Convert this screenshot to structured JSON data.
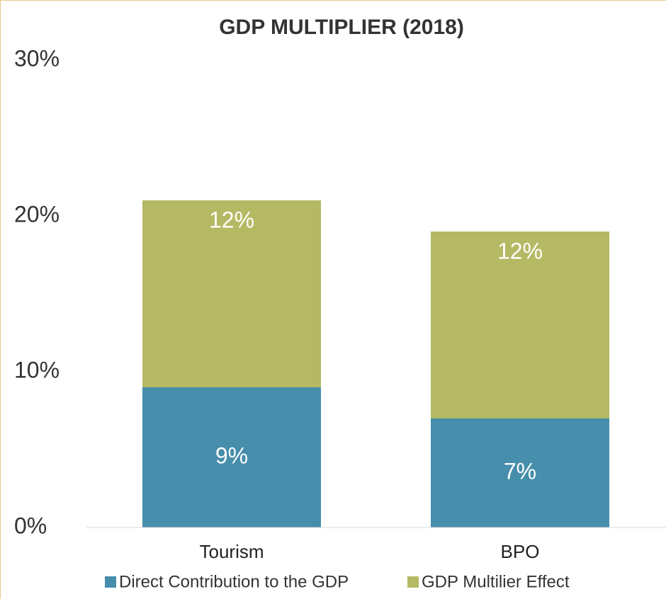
{
  "chart_data": {
    "type": "stacked_bar",
    "title": "GDP MULTIPLIER (2018)",
    "categories": [
      "Tourism",
      "BPO"
    ],
    "series": [
      {
        "name": "Direct Contribution to the GDP",
        "color": "#468eab",
        "values": [
          9,
          7
        ],
        "value_labels": [
          "9%",
          "7%"
        ]
      },
      {
        "name": "GDP Multilier Effect",
        "color": "#b5b963",
        "values": [
          12,
          12
        ],
        "value_labels": [
          "12%",
          "12%"
        ]
      }
    ],
    "ylim": [
      0,
      30
    ],
    "yticks": [
      {
        "value": 0,
        "label": "0%"
      },
      {
        "value": 10,
        "label": "10%"
      },
      {
        "value": 20,
        "label": "20%"
      },
      {
        "value": 30,
        "label": "30%"
      }
    ],
    "legend": "bottom"
  }
}
